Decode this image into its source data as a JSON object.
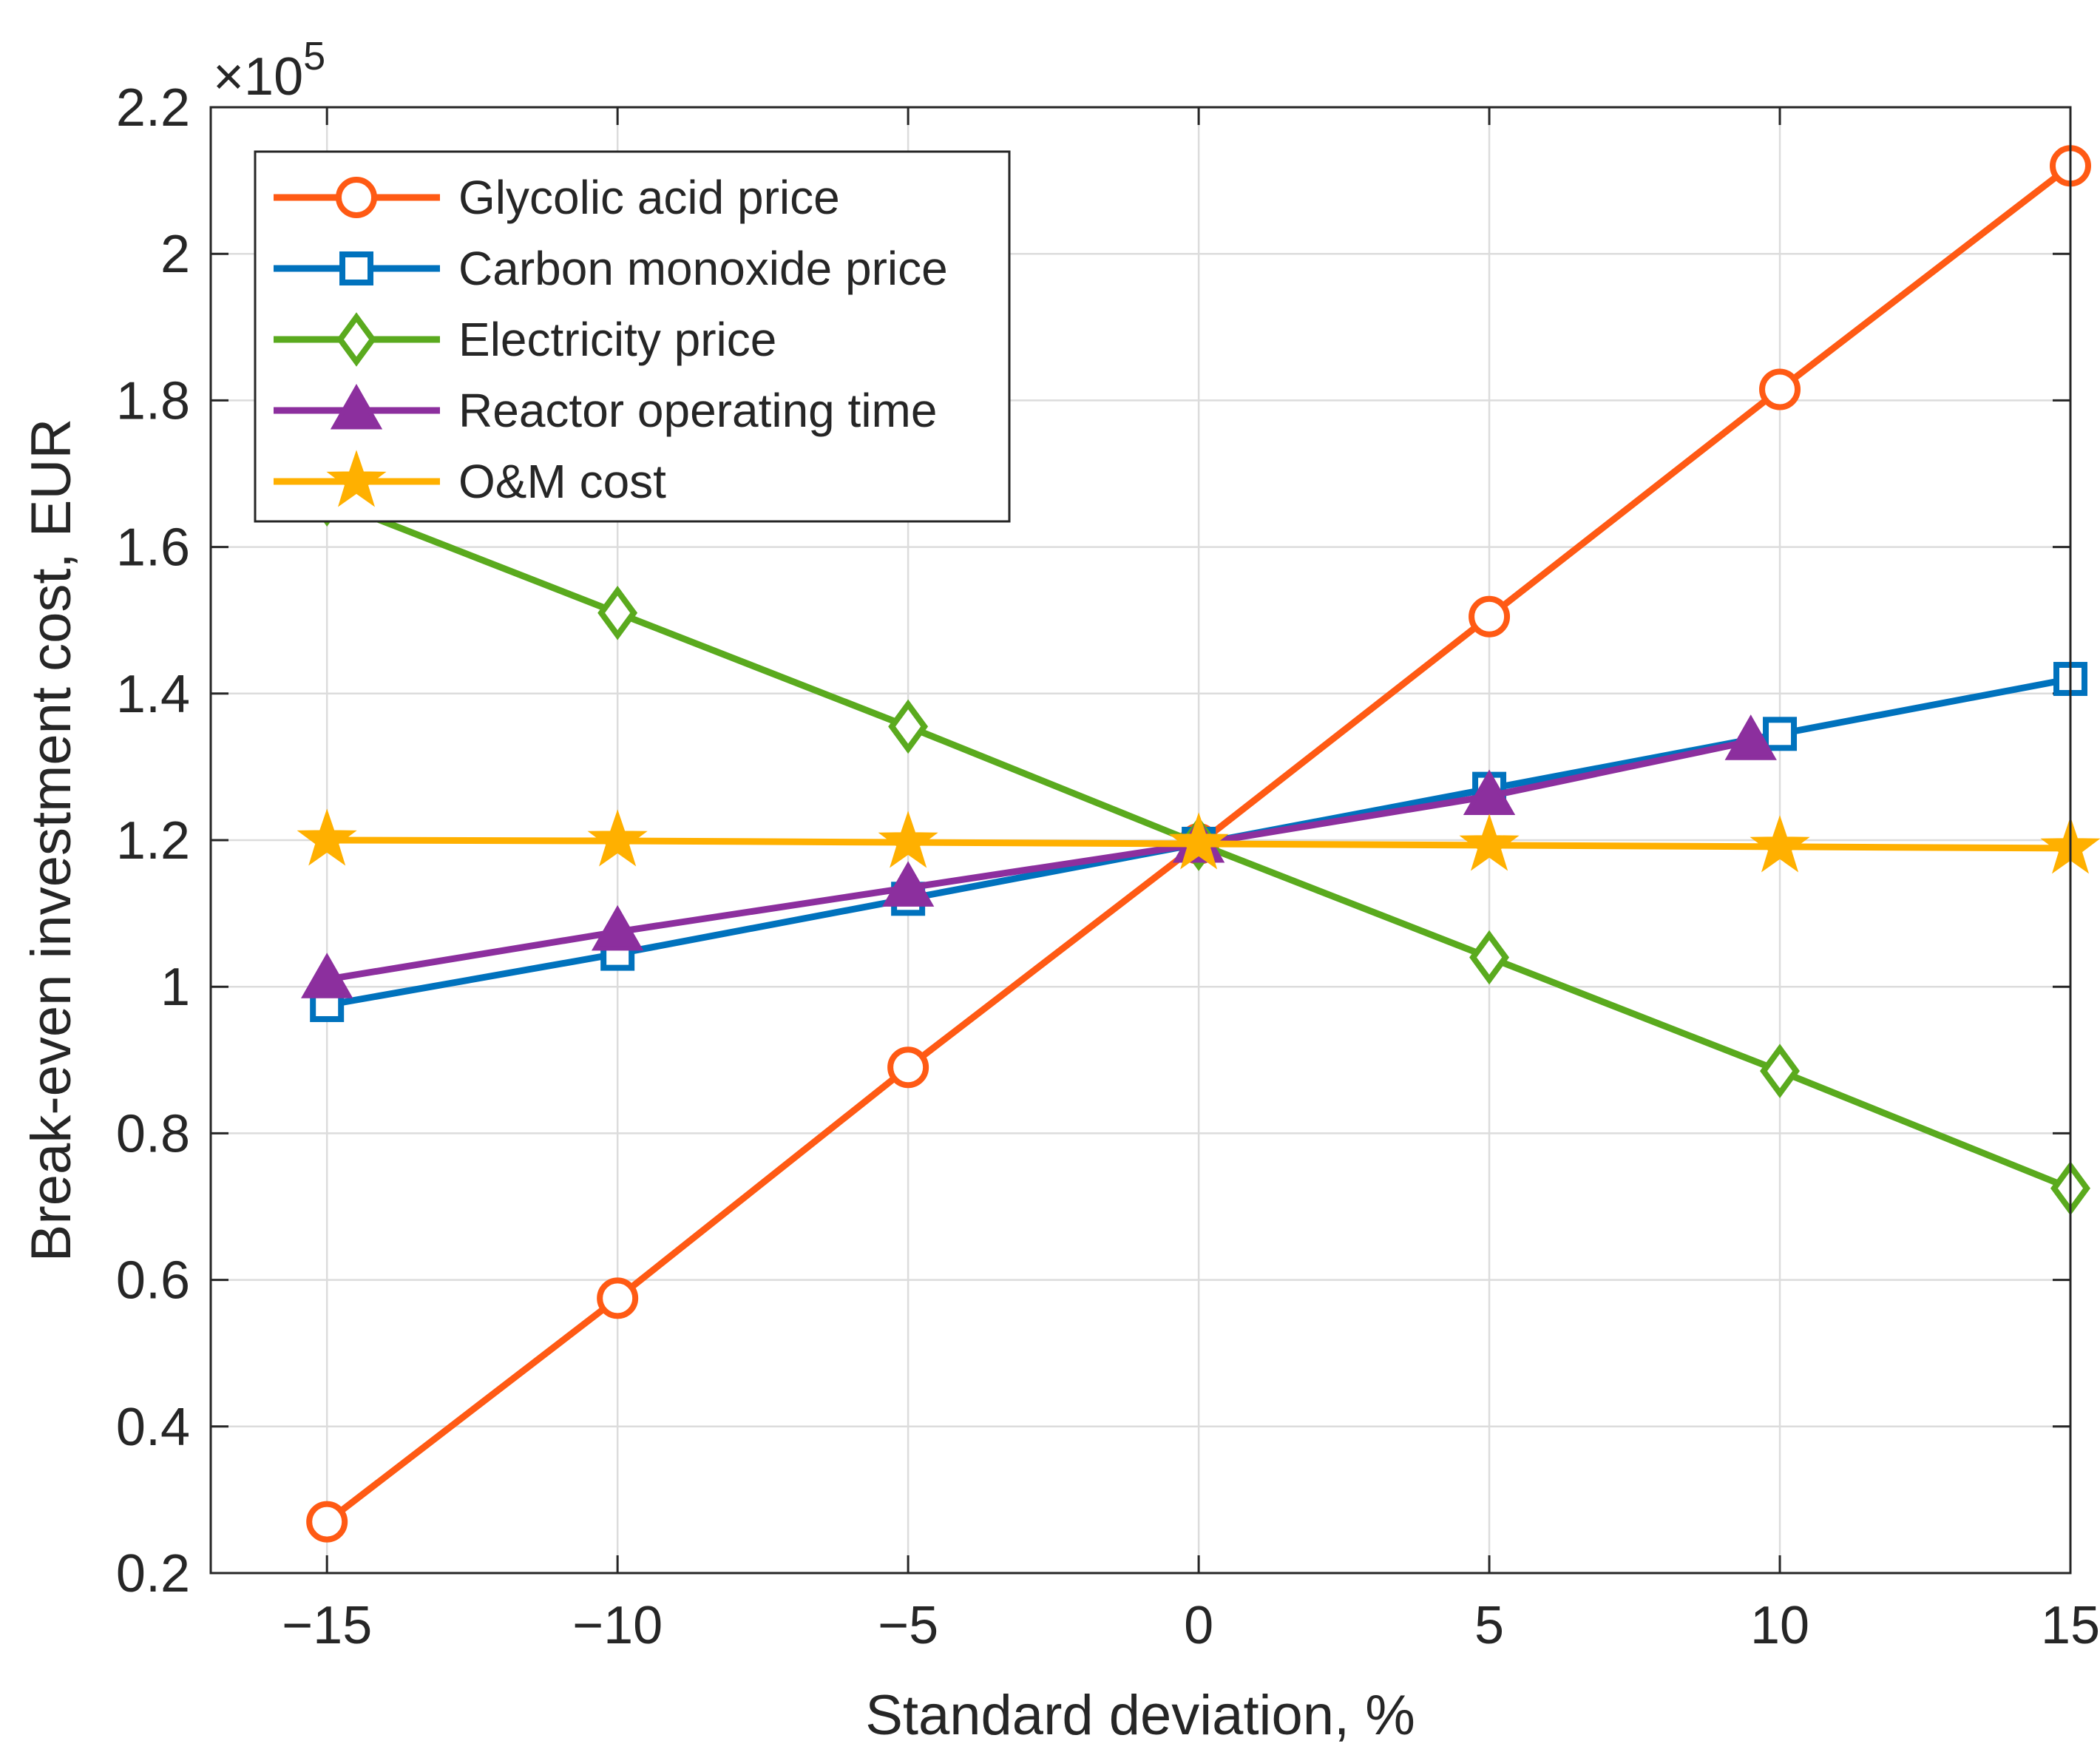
{
  "chart_data": {
    "type": "line",
    "title": "",
    "xlabel": "Standard deviation, %",
    "ylabel": "Break-even investment cost, EUR",
    "y_exponent_label": "×10",
    "y_exponent_power": "5",
    "xlim": [
      -17,
      15
    ],
    "ylim": [
      0.2,
      2.2
    ],
    "x_ticks": [
      -15,
      -10,
      -5,
      0,
      5,
      10,
      15
    ],
    "x_tick_labels": [
      "−15",
      "−10",
      "−5",
      "0",
      "5",
      "10",
      "15"
    ],
    "y_ticks": [
      0.2,
      0.4,
      0.6,
      0.8,
      1.0,
      1.2,
      1.4,
      1.6,
      1.8,
      2.0,
      2.2
    ],
    "y_tick_labels": [
      "0.2",
      "0.4",
      "0.6",
      "0.8",
      "1",
      "1.2",
      "1.4",
      "1.6",
      "1.8",
      "2",
      "2.2"
    ],
    "grid": true,
    "legend_position": "top-left",
    "series": [
      {
        "name": "Glycolic acid price",
        "color": "#FF5A14",
        "marker": "circle",
        "x": [
          -15,
          -10,
          -5,
          0,
          5,
          10,
          15
        ],
        "y": [
          0.27,
          0.575,
          0.89,
          1.195,
          1.505,
          1.815,
          2.12
        ]
      },
      {
        "name": "Carbon monoxide price",
        "color": "#0072BD",
        "marker": "square",
        "x": [
          -15,
          -10,
          -5,
          0,
          5,
          10,
          15
        ],
        "y": [
          0.975,
          1.045,
          1.12,
          1.195,
          1.27,
          1.345,
          1.42
        ]
      },
      {
        "name": "Electricity price",
        "color": "#5AAA1E",
        "marker": "diamond",
        "x": [
          -15,
          -10,
          -5,
          0,
          5,
          10,
          15
        ],
        "y": [
          1.665,
          1.51,
          1.355,
          1.195,
          1.04,
          0.885,
          0.725
        ]
      },
      {
        "name": "Reactor operating time",
        "color": "#8C2F9E",
        "marker": "triangle",
        "x": [
          -15,
          -10,
          -5,
          0,
          5,
          9.5
        ],
        "y": [
          1.01,
          1.075,
          1.135,
          1.195,
          1.26,
          1.335
        ]
      },
      {
        "name": "O&M cost",
        "color": "#FFB000",
        "marker": "star",
        "x": [
          -15,
          -10,
          -5,
          0,
          5,
          10,
          15
        ],
        "y": [
          1.2,
          1.199,
          1.197,
          1.195,
          1.193,
          1.191,
          1.189
        ]
      }
    ]
  }
}
